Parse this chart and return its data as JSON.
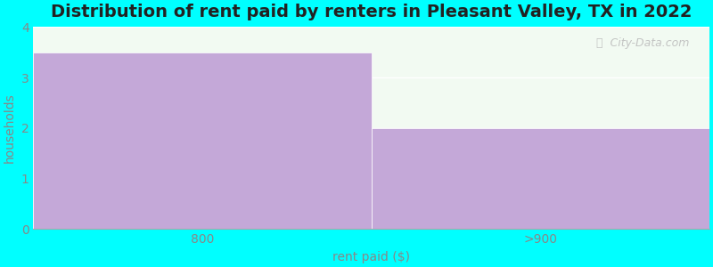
{
  "title": "Distribution of rent paid by renters in Pleasant Valley, TX in 2022",
  "categories": [
    "800",
    ">900"
  ],
  "values": [
    3.5,
    2.0
  ],
  "bar_color": "#C4A8D8",
  "xlabel": "rent paid ($)",
  "ylabel": "households",
  "ylim": [
    0,
    4
  ],
  "yticks": [
    0,
    1,
    2,
    3,
    4
  ],
  "background_color": "#00FFFF",
  "plot_bg_color": "#F2FAF2",
  "title_fontsize": 14,
  "axis_label_fontsize": 10,
  "tick_fontsize": 10,
  "watermark_text": "City-Data.com",
  "tick_color": "#888888",
  "label_color": "#888888"
}
